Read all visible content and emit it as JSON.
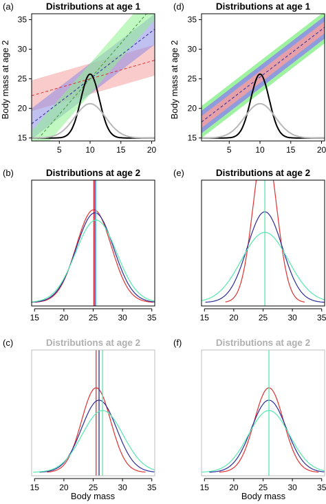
{
  "ylabel_top": "Body mass at age 2",
  "xlabel_bottom": "Body mass",
  "colors": {
    "red": "#e03030",
    "blue": "#2a2a9a",
    "green": "#55e8b0",
    "black": "#000000",
    "grey": "#b8b8b8",
    "faint_title": "#b0b0b0",
    "band_red": "#f4a0a0",
    "band_blue": "#8c8ce6",
    "band_green": "#8ef08e"
  },
  "chart_data": [
    {
      "panel": "(a)",
      "type": "line",
      "title": "Distributions at age 1",
      "title_style": "bold-black",
      "xlim": [
        0.5,
        20.5
      ],
      "ylim": [
        14.5,
        36
      ],
      "xticks": [
        5,
        10,
        15,
        20
      ],
      "yticks": [
        15,
        20,
        25,
        30,
        35
      ],
      "regression_lines": [
        {
          "color": "red",
          "intercept": 22.0,
          "slope": 0.3,
          "band_half_width": 2.6
        },
        {
          "color": "blue",
          "intercept": 17.0,
          "slope": 0.8,
          "band_half_width": 2.6
        },
        {
          "color": "green",
          "intercept": 13.0,
          "slope": 1.2,
          "band_half_width": 2.6
        }
      ],
      "densities": [
        {
          "color": "black",
          "mean": 10,
          "sd": 1.5,
          "baseline": 15,
          "peak": 25.8
        },
        {
          "color": "grey",
          "mean": 10,
          "sd": 2.5,
          "baseline": 15,
          "peak": 20.8
        }
      ]
    },
    {
      "panel": "(d)",
      "type": "line",
      "title": "Distributions at age 1",
      "title_style": "bold-black",
      "xlim": [
        0.5,
        20.5
      ],
      "ylim": [
        14.5,
        36
      ],
      "xticks": [
        5,
        10,
        15,
        20
      ],
      "yticks": [
        15,
        20,
        25,
        30,
        35
      ],
      "regression_lines": [
        {
          "color": "blue",
          "intercept": 17.3,
          "slope": 0.8,
          "band_half_width": 2.7
        }
      ],
      "bands_nested": [
        {
          "color": "green",
          "half_width": 2.7
        },
        {
          "color": "blue",
          "half_width": 1.9
        },
        {
          "color": "red",
          "half_width": 1.0
        }
      ],
      "densities": [
        {
          "color": "black",
          "mean": 10,
          "sd": 1.5,
          "baseline": 15,
          "peak": 25.8
        },
        {
          "color": "grey",
          "mean": 10,
          "sd": 2.5,
          "baseline": 15,
          "peak": 20.8
        }
      ]
    },
    {
      "panel": "(b)",
      "type": "line",
      "title": "Distributions at age 2",
      "title_style": "bold-black",
      "xlim": [
        14.5,
        35.5
      ],
      "xticks": [
        15,
        20,
        25,
        30,
        35
      ],
      "peak_max": 1.0,
      "densities": [
        {
          "color": "red",
          "mean": 25.1,
          "sd": 3.0,
          "height": 0.9,
          "vline": 25.1
        },
        {
          "color": "blue",
          "mean": 25.3,
          "sd": 3.2,
          "height": 0.87,
          "vline": 25.3
        },
        {
          "color": "green",
          "mean": 25.5,
          "sd": 3.5,
          "height": 0.8,
          "vline": 25.5
        }
      ]
    },
    {
      "panel": "(e)",
      "type": "line",
      "title": "Distributions at age 2",
      "title_style": "bold-black",
      "xlim": [
        14.5,
        35.5
      ],
      "xticks": [
        15,
        20,
        25,
        30,
        35
      ],
      "peak_max": 1.0,
      "densities": [
        {
          "color": "red",
          "mean": 25.3,
          "sd": 2.0,
          "height": 1.55,
          "vline": null
        },
        {
          "color": "blue",
          "mean": 25.3,
          "sd": 3.0,
          "height": 0.88,
          "vline": null
        },
        {
          "color": "green",
          "mean": 25.3,
          "sd": 4.0,
          "height": 0.68,
          "vline": 25.3
        }
      ]
    },
    {
      "panel": "(c)",
      "type": "line",
      "title": "Distributions at age 2",
      "title_style": "bold-grey",
      "xlim": [
        14.5,
        35.5
      ],
      "xticks": [
        15,
        20,
        25,
        30,
        35
      ],
      "xlabel": "Body mass",
      "peak_max": 1.0,
      "densities": [
        {
          "color": "red",
          "mean": 25.5,
          "sd": 2.5,
          "height": 0.82,
          "vline": 25.5
        },
        {
          "color": "blue",
          "mean": 26.0,
          "sd": 3.0,
          "height": 0.7,
          "vline": 26.0
        },
        {
          "color": "green",
          "mean": 26.6,
          "sd": 3.5,
          "height": 0.6,
          "vline": 26.6
        }
      ]
    },
    {
      "panel": "(f)",
      "type": "line",
      "title": "Distributions at age 2",
      "title_style": "bold-grey",
      "xlim": [
        14.5,
        35.5
      ],
      "xticks": [
        15,
        20,
        25,
        30,
        35
      ],
      "xlabel": "Body mass",
      "peak_max": 1.0,
      "densities": [
        {
          "color": "red",
          "mean": 26.0,
          "sd": 2.5,
          "height": 0.82,
          "vline": null
        },
        {
          "color": "blue",
          "mean": 26.0,
          "sd": 3.0,
          "height": 0.7,
          "vline": null
        },
        {
          "color": "green",
          "mean": 26.0,
          "sd": 3.5,
          "height": 0.6,
          "vline": 26.0
        }
      ]
    }
  ]
}
